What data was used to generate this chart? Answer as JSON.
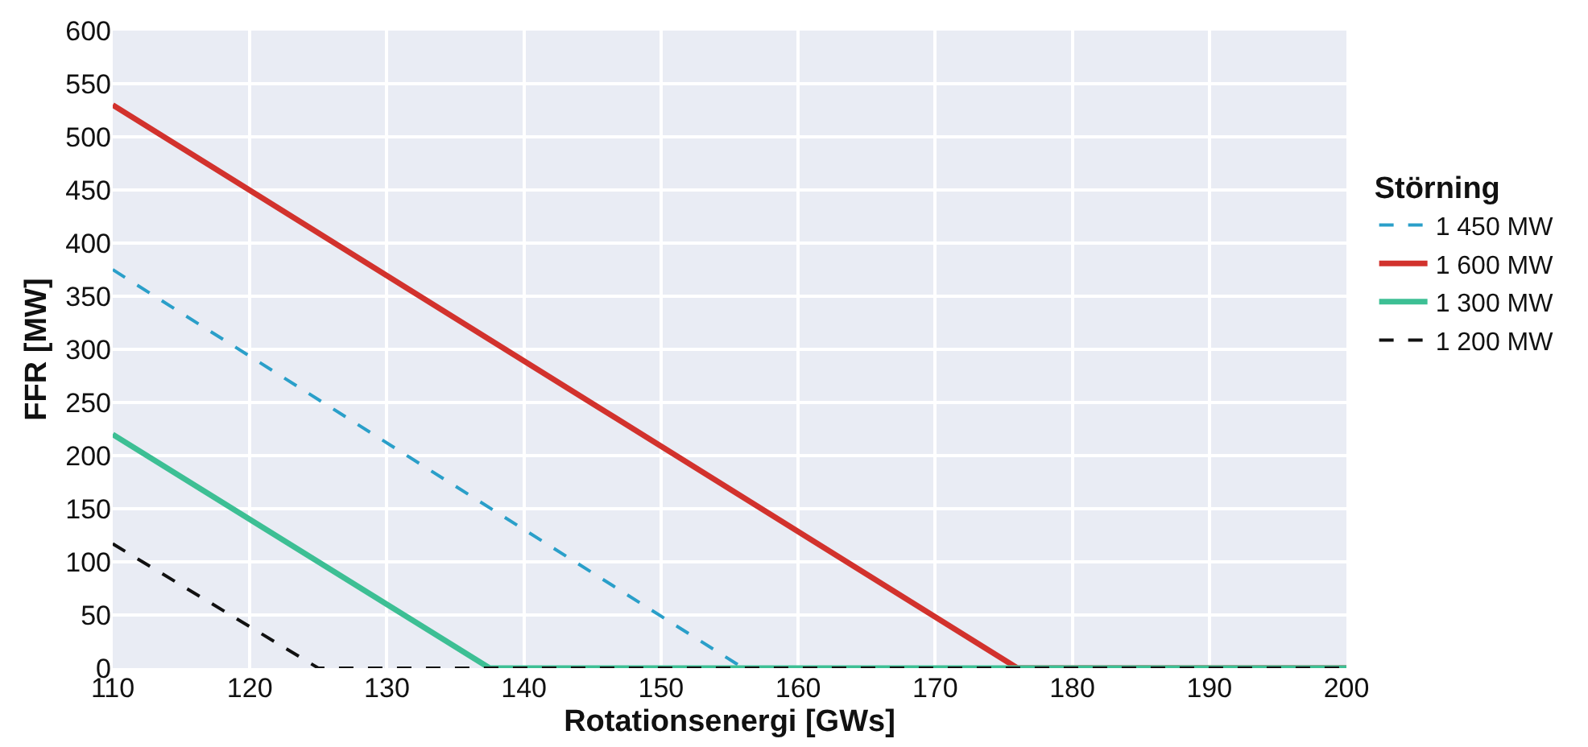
{
  "chart_data": {
    "type": "line",
    "xlabel": "Rotationsenergi [GWs]",
    "ylabel": "FFR [MW]",
    "legend_title": "Störning",
    "xlim": [
      110,
      200
    ],
    "xticks": [
      110,
      120,
      130,
      140,
      150,
      160,
      170,
      180,
      190,
      200
    ],
    "ylim": [
      0,
      600
    ],
    "yticks": [
      0,
      50,
      100,
      150,
      200,
      250,
      300,
      350,
      400,
      450,
      500,
      550,
      600
    ],
    "grid": true,
    "legend": "right",
    "marker": "none",
    "series": [
      {
        "name": "1 450 MW",
        "color": "#2a9fc9",
        "line_style": "dashed",
        "x": [
          110,
          156,
          200
        ],
        "values": [
          375,
          0,
          0
        ]
      },
      {
        "name": "1 600 MW",
        "color": "#d2322d",
        "line_style": "solid",
        "x": [
          110,
          176,
          200
        ],
        "values": [
          530,
          0,
          0
        ]
      },
      {
        "name": "1 300 MW",
        "color": "#3dbf94",
        "line_style": "solid",
        "x": [
          110,
          137.5,
          200
        ],
        "values": [
          220,
          0,
          0
        ]
      },
      {
        "name": "1 200 MW",
        "color": "#111111",
        "line_style": "dashed",
        "x": [
          110,
          125,
          200
        ],
        "values": [
          117,
          0,
          0
        ]
      }
    ]
  }
}
